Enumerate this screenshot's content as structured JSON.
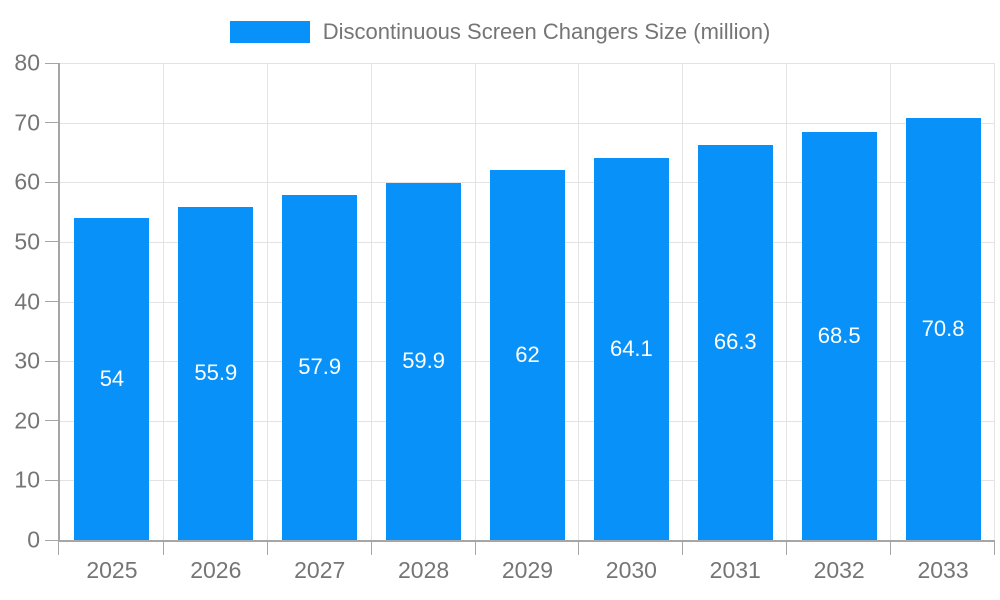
{
  "legend": {
    "label": "Discontinuous Screen Changers Size (million)"
  },
  "chart_data": {
    "type": "bar",
    "title": "Discontinuous Screen Changers Size (million)",
    "categories": [
      "2025",
      "2026",
      "2027",
      "2028",
      "2029",
      "2030",
      "2031",
      "2032",
      "2033"
    ],
    "values": [
      54,
      55.9,
      57.9,
      59.9,
      62,
      64.1,
      66.3,
      68.5,
      70.8
    ],
    "value_labels": [
      "54",
      "55.9",
      "57.9",
      "59.9",
      "62",
      "64.1",
      "66.3",
      "68.5",
      "70.8"
    ],
    "series_name": "Discontinuous Screen Changers Size (million)",
    "xlabel": "",
    "ylabel": "",
    "ylim": [
      0,
      80
    ],
    "yticks": [
      "0",
      "10",
      "20",
      "30",
      "40",
      "50",
      "60",
      "70",
      "80"
    ],
    "grid": true,
    "legend_position": "top-center",
    "colors": {
      "bar": "#0891f8",
      "bar_label": "#ffffff",
      "axis_text": "#757575",
      "grid_line": "#e3e3e3",
      "axis_line": "#a6a6a6",
      "background": "#ffffff"
    }
  }
}
